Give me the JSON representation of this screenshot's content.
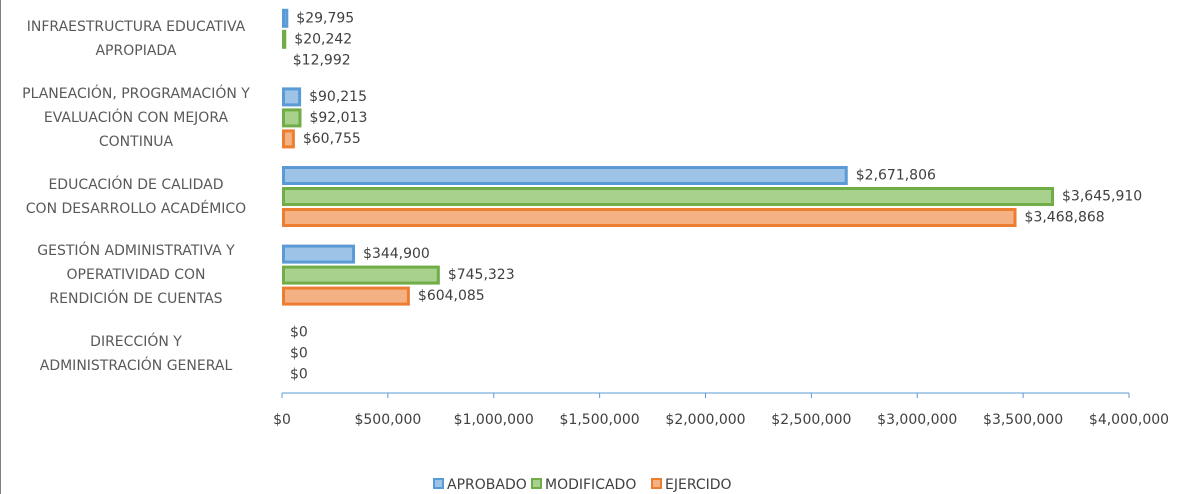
{
  "chart_data": {
    "type": "bar",
    "orientation": "horizontal",
    "categories": [
      "INFRAESTRUCTURA EDUCATIVA\nAPROPIADA",
      "PLANEACIÓN, PROGRAMACIÓN Y\nEVALUACIÓN CON MEJORA\nCONTINUA",
      "EDUCACIÓN DE CALIDAD\nCON DESARROLLO ACADÉMICO",
      "GESTIÓN ADMINISTRATIVA Y\nOPERATIVIDAD CON\nRENDICIÓN DE CUENTAS",
      "DIRECCIÓN Y\nADMINISTRACIÓN GENERAL"
    ],
    "series": [
      {
        "name": "APROBADO",
        "color": "#5b9bd5",
        "fill": "#9dc3e6",
        "values": [
          29795,
          90215,
          2671806,
          344900,
          0
        ],
        "value_labels": [
          "$29,795",
          "$90,215",
          "$2,671,806",
          "$344,900",
          "$0"
        ]
      },
      {
        "name": "MODIFICADO",
        "color": "#70ad47",
        "fill": "#a9d18e",
        "values": [
          20242,
          92013,
          3645910,
          745323,
          0
        ],
        "value_labels": [
          "$20,242",
          "$92,013",
          "$3,645,910",
          "$745,323",
          "$0"
        ]
      },
      {
        "name": "EJERCIDO",
        "color": "#ed7d31",
        "fill": "#f4b183",
        "values": [
          12992,
          60755,
          3468868,
          604085,
          0
        ],
        "value_labels": [
          "$12,992",
          "$60,755",
          "$3,468,868",
          "$604,085",
          "$0"
        ]
      }
    ],
    "xlim": [
      0,
      4000000
    ],
    "xticks": [
      {
        "value": 0,
        "label": "$0"
      },
      {
        "value": 500000,
        "label": "$500,000"
      },
      {
        "value": 1000000,
        "label": "$1,000,000"
      },
      {
        "value": 1500000,
        "label": "$1,500,000"
      },
      {
        "value": 2000000,
        "label": "$2,000,000"
      },
      {
        "value": 2500000,
        "label": "$2,500,000"
      },
      {
        "value": 3000000,
        "label": "$3,000,000"
      },
      {
        "value": 3500000,
        "label": "$3,500,000"
      },
      {
        "value": 4000000,
        "label": "$4,000,000"
      }
    ],
    "legend": "bottom"
  }
}
